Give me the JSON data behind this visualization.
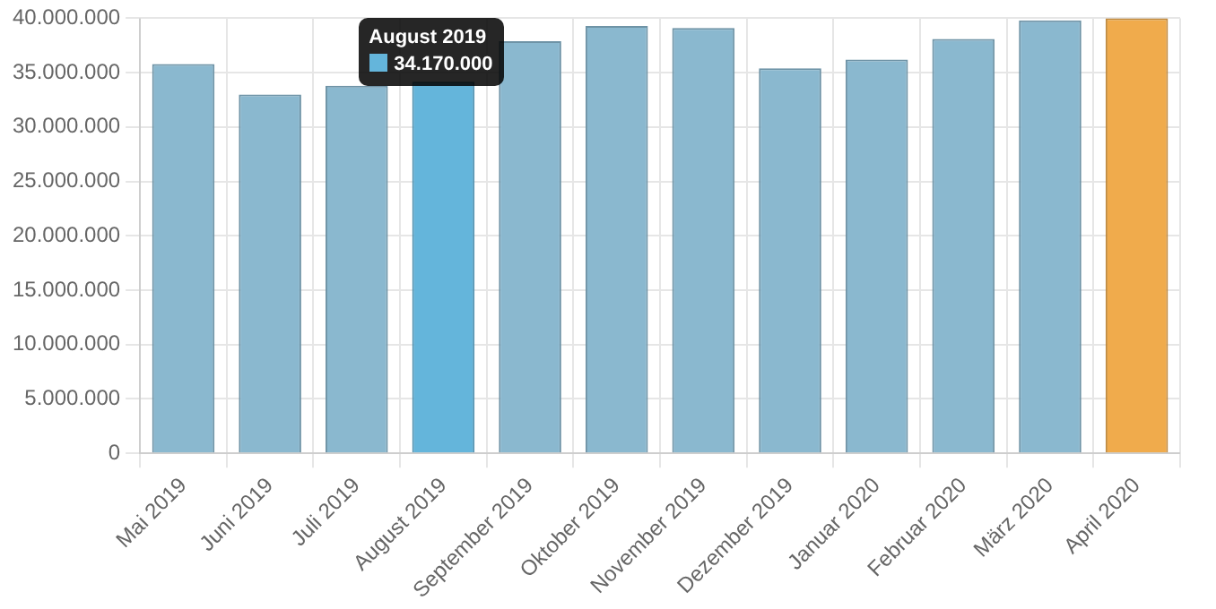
{
  "chart_data": {
    "type": "bar",
    "categories": [
      "Mai 2019",
      "Juni 2019",
      "Juli 2019",
      "August 2019",
      "September 2019",
      "Oktober 2019",
      "November 2019",
      "Dezember 2019",
      "Januar 2020",
      "Februar 2020",
      "März 2020",
      "April 2020"
    ],
    "values": [
      35800000,
      33000000,
      33800000,
      34170000,
      37900000,
      39300000,
      39100000,
      35400000,
      36200000,
      38100000,
      39800000,
      40000000
    ],
    "colors": [
      "#8ab8cf",
      "#8ab8cf",
      "#8ab8cf",
      "#64b5db",
      "#8ab8cf",
      "#8ab8cf",
      "#8ab8cf",
      "#8ab8cf",
      "#8ab8cf",
      "#8ab8cf",
      "#8ab8cf",
      "#f0ab4c"
    ],
    "value_labels": [
      null,
      null,
      null,
      "34.170.000",
      null,
      null,
      null,
      null,
      null,
      null,
      null,
      null
    ],
    "ylim": [
      0,
      40000000
    ],
    "yticks": [
      0,
      {
        "value": 5000000,
        "label": "5.000.000"
      },
      {
        "value": 10000000,
        "label": "10.000.000"
      },
      {
        "value": 15000000,
        "label": "15.000.000"
      },
      {
        "value": 20000000,
        "label": "20.000.000"
      },
      {
        "value": 25000000,
        "label": "25.000.000"
      },
      {
        "value": 30000000,
        "label": "30.000.000"
      },
      {
        "value": 35000000,
        "label": "35.000.000"
      },
      {
        "value": 40000000,
        "label": "40.000.000"
      }
    ],
    "grid": true,
    "legend": false
  }
}
